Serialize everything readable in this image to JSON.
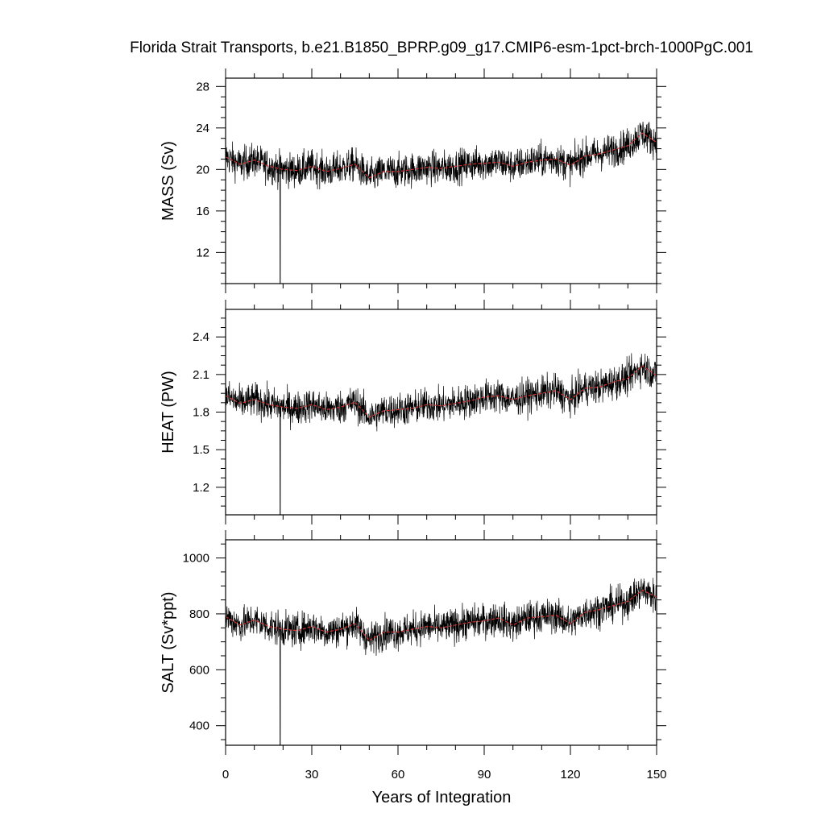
{
  "chart_data": {
    "type": "line",
    "title": "Florida Strait Transports, b.e21.B1850_BPRP.g09_g17.CMIP6-esm-1pct-brch-1000PgC.001",
    "xlabel": "Years of Integration",
    "xlim": [
      0,
      150
    ],
    "xticks": [
      "0",
      "30",
      "60",
      "90",
      "120",
      "150"
    ],
    "colors": {
      "raw": "#000000",
      "smooth": "#cc3333"
    },
    "panels": [
      {
        "ylabel": "MASS (Sv)",
        "ylim": [
          9,
          28.8
        ],
        "yticks": [
          12,
          16,
          20,
          24,
          28
        ],
        "tick_labels": [
          "12",
          "16",
          "20",
          "24",
          "28"
        ],
        "series": [
          {
            "role": "monthly",
            "x": [
              0,
              5,
              10,
              15,
              19,
              20,
              25,
              30,
              35,
              40,
              45,
              50,
              55,
              60,
              65,
              70,
              75,
              80,
              85,
              90,
              95,
              100,
              105,
              110,
              115,
              120,
              125,
              130,
              135,
              140,
              145,
              150
            ],
            "y": [
              21.2,
              20.5,
              21.0,
              20.3,
              9.0,
              20.0,
              19.8,
              20.3,
              19.9,
              20.1,
              20.6,
              19.2,
              19.8,
              19.8,
              20.0,
              20.2,
              20.1,
              20.3,
              20.5,
              20.6,
              20.8,
              20.3,
              20.7,
              20.9,
              21.0,
              20.4,
              21.3,
              21.5,
              21.9,
              22.3,
              23.0,
              22.6
            ]
          },
          {
            "role": "smoothed",
            "x": [
              0,
              5,
              10,
              15,
              20,
              25,
              30,
              35,
              40,
              45,
              50,
              55,
              60,
              65,
              70,
              75,
              80,
              85,
              90,
              95,
              100,
              105,
              110,
              115,
              120,
              125,
              130,
              135,
              140,
              145,
              150
            ],
            "y": [
              21.2,
              20.5,
              20.9,
              20.3,
              20.0,
              19.9,
              20.3,
              19.8,
              20.1,
              20.5,
              19.2,
              19.8,
              19.8,
              20.0,
              20.2,
              20.1,
              20.3,
              20.5,
              20.6,
              20.7,
              20.3,
              20.7,
              20.9,
              21.0,
              20.4,
              21.3,
              21.5,
              21.9,
              22.3,
              23.5,
              22.6
            ]
          }
        ]
      },
      {
        "ylabel": "HEAT (PW)",
        "ylim": [
          0.98,
          2.62
        ],
        "yticks": [
          1.2,
          1.5,
          1.8,
          2.1,
          2.4
        ],
        "tick_labels": [
          "1.2",
          "1.5",
          "1.8",
          "2.1",
          "2.4"
        ],
        "series": [
          {
            "role": "monthly",
            "x": [
              0,
              5,
              10,
              15,
              19,
              20,
              25,
              30,
              35,
              40,
              45,
              50,
              55,
              60,
              65,
              70,
              75,
              80,
              85,
              90,
              95,
              100,
              105,
              110,
              115,
              120,
              125,
              130,
              135,
              140,
              145,
              150
            ],
            "y": [
              1.93,
              1.87,
              1.9,
              1.86,
              0.98,
              1.84,
              1.83,
              1.86,
              1.82,
              1.84,
              1.88,
              1.76,
              1.81,
              1.82,
              1.83,
              1.86,
              1.85,
              1.87,
              1.89,
              1.92,
              1.93,
              1.9,
              1.93,
              1.95,
              1.97,
              1.9,
              1.99,
              2.0,
              2.04,
              2.07,
              2.14,
              2.09
            ]
          },
          {
            "role": "smoothed",
            "x": [
              0,
              5,
              10,
              15,
              20,
              25,
              30,
              35,
              40,
              45,
              50,
              55,
              60,
              65,
              70,
              75,
              80,
              85,
              90,
              95,
              100,
              105,
              110,
              115,
              120,
              125,
              130,
              135,
              140,
              145,
              150
            ],
            "y": [
              1.93,
              1.87,
              1.9,
              1.86,
              1.84,
              1.83,
              1.86,
              1.82,
              1.84,
              1.88,
              1.76,
              1.81,
              1.82,
              1.83,
              1.86,
              1.85,
              1.87,
              1.89,
              1.92,
              1.93,
              1.9,
              1.93,
              1.95,
              1.97,
              1.9,
              1.99,
              2.0,
              2.04,
              2.07,
              2.17,
              2.09
            ]
          }
        ]
      },
      {
        "ylabel": "SALT (Sv*ppt)",
        "ylim": [
          330,
          1065
        ],
        "yticks": [
          400,
          600,
          800,
          1000
        ],
        "tick_labels": [
          "400",
          "600",
          "800",
          "1000"
        ],
        "series": [
          {
            "role": "monthly",
            "x": [
              0,
              5,
              10,
              15,
              19,
              20,
              25,
              30,
              35,
              40,
              45,
              50,
              55,
              60,
              65,
              70,
              75,
              80,
              85,
              90,
              95,
              100,
              105,
              110,
              115,
              120,
              125,
              130,
              135,
              140,
              145,
              150
            ],
            "y": [
              790,
              760,
              780,
              755,
              330,
              745,
              740,
              755,
              735,
              745,
              765,
              705,
              735,
              735,
              745,
              755,
              750,
              760,
              770,
              775,
              785,
              760,
              785,
              790,
              795,
              765,
              805,
              815,
              830,
              845,
              875,
              860
            ]
          },
          {
            "role": "smoothed",
            "x": [
              0,
              5,
              10,
              15,
              20,
              25,
              30,
              35,
              40,
              45,
              50,
              55,
              60,
              65,
              70,
              75,
              80,
              85,
              90,
              95,
              100,
              105,
              110,
              115,
              120,
              125,
              130,
              135,
              140,
              145,
              150
            ],
            "y": [
              790,
              760,
              778,
              755,
              745,
              740,
              755,
              735,
              745,
              765,
              705,
              735,
              735,
              745,
              755,
              750,
              760,
              770,
              775,
              785,
              760,
              785,
              790,
              795,
              765,
              805,
              815,
              830,
              845,
              885,
              860
            ]
          }
        ]
      }
    ]
  }
}
